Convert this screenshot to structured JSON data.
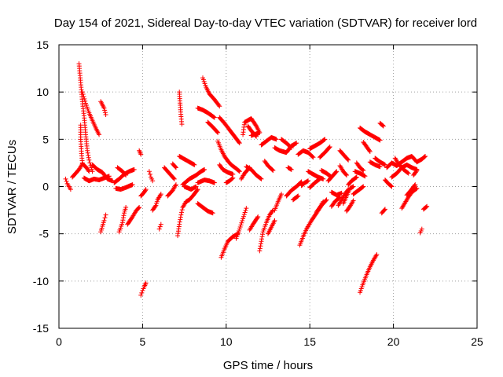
{
  "chart_data": {
    "type": "scatter",
    "title": "Day 154 of 2021, Sidereal Day-to-day VTEC variation (SDTVAR) for receiver lord",
    "xlabel": "GPS time / hours",
    "ylabel": "SDTVAR / TECUs",
    "xlim": [
      0,
      25
    ],
    "ylim": [
      -15,
      15
    ],
    "xticks": [
      0,
      5,
      10,
      15,
      20,
      25
    ],
    "yticks": [
      -15,
      -10,
      -5,
      0,
      5,
      10,
      15
    ],
    "grid": true,
    "marker": "+",
    "color": "#ff0000",
    "segments": [
      [
        [
          1.2,
          13.0
        ],
        [
          1.3,
          11.0
        ],
        [
          1.4,
          9.0
        ],
        [
          1.5,
          7.5
        ],
        [
          1.6,
          5.5
        ],
        [
          1.7,
          3.8
        ],
        [
          1.8,
          2.8
        ],
        [
          1.9,
          2.2
        ],
        [
          2.0,
          1.6
        ]
      ],
      [
        [
          1.3,
          6.5
        ],
        [
          1.3,
          5.0
        ],
        [
          1.35,
          3.5
        ],
        [
          1.4,
          2.5
        ]
      ],
      [
        [
          1.4,
          10.0
        ],
        [
          1.6,
          8.8
        ],
        [
          1.8,
          7.8
        ],
        [
          2.0,
          7.0
        ],
        [
          2.2,
          6.2
        ],
        [
          2.4,
          5.5
        ]
      ],
      [
        [
          0.4,
          0.8
        ],
        [
          0.5,
          0.3
        ],
        [
          0.6,
          0.0
        ],
        [
          0.7,
          -0.3
        ]
      ],
      [
        [
          0.8,
          1.0
        ],
        [
          1.0,
          1.4
        ],
        [
          1.2,
          1.8
        ],
        [
          1.4,
          2.4
        ],
        [
          1.6,
          2.1
        ],
        [
          1.8,
          1.6
        ]
      ],
      [
        [
          1.5,
          0.9
        ],
        [
          1.8,
          0.6
        ],
        [
          2.1,
          0.8
        ],
        [
          2.4,
          0.7
        ],
        [
          2.7,
          0.9
        ],
        [
          3.0,
          1.1
        ]
      ],
      [
        [
          2.0,
          2.3
        ],
        [
          2.3,
          1.8
        ],
        [
          2.6,
          1.5
        ],
        [
          2.9,
          0.8
        ],
        [
          3.2,
          0.6
        ]
      ],
      [
        [
          2.5,
          9.0
        ],
        [
          2.7,
          8.3
        ],
        [
          2.8,
          7.6
        ]
      ],
      [
        [
          2.5,
          -4.8
        ],
        [
          2.6,
          -4.2
        ],
        [
          2.7,
          -3.6
        ],
        [
          2.8,
          -3.0
        ]
      ],
      [
        [
          3.3,
          0.4
        ],
        [
          3.6,
          0.8
        ],
        [
          3.9,
          1.3
        ],
        [
          4.2,
          1.6
        ],
        [
          4.5,
          1.8
        ]
      ],
      [
        [
          3.5,
          2.0
        ],
        [
          3.8,
          1.6
        ],
        [
          4.0,
          1.2
        ]
      ],
      [
        [
          3.4,
          -0.2
        ],
        [
          3.7,
          -0.3
        ],
        [
          4.0,
          -0.1
        ],
        [
          4.4,
          0.2
        ]
      ],
      [
        [
          3.6,
          -4.8
        ],
        [
          3.8,
          -3.8
        ],
        [
          3.9,
          -2.8
        ],
        [
          4.0,
          -2.2
        ]
      ],
      [
        [
          4.1,
          -4.0
        ],
        [
          4.4,
          -3.2
        ],
        [
          4.6,
          -2.6
        ],
        [
          4.8,
          -2.2
        ]
      ],
      [
        [
          4.8,
          3.8
        ],
        [
          4.9,
          3.4
        ]
      ],
      [
        [
          4.9,
          -11.5
        ],
        [
          5.0,
          -11.0
        ],
        [
          5.1,
          -10.6
        ],
        [
          5.2,
          -10.2
        ]
      ],
      [
        [
          4.9,
          -1.0
        ],
        [
          5.1,
          -0.6
        ],
        [
          5.2,
          -0.3
        ]
      ],
      [
        [
          5.4,
          1.6
        ],
        [
          5.5,
          1.0
        ],
        [
          5.6,
          0.6
        ]
      ],
      [
        [
          5.6,
          -2.5
        ],
        [
          5.8,
          -2.0
        ],
        [
          5.9,
          -1.4
        ],
        [
          6.1,
          -0.8
        ]
      ],
      [
        [
          6.0,
          -4.5
        ],
        [
          6.1,
          -4.0
        ]
      ],
      [
        [
          6.3,
          2.0
        ],
        [
          6.5,
          1.6
        ],
        [
          6.7,
          1.2
        ],
        [
          6.9,
          0.8
        ]
      ],
      [
        [
          6.5,
          -1.0
        ],
        [
          6.8,
          -0.4
        ],
        [
          7.0,
          0.2
        ]
      ],
      [
        [
          6.8,
          2.4
        ],
        [
          7.0,
          2.0
        ]
      ],
      [
        [
          7.1,
          -5.2
        ],
        [
          7.2,
          -4.0
        ],
        [
          7.3,
          -3.0
        ],
        [
          7.4,
          -2.2
        ],
        [
          7.6,
          -1.6
        ],
        [
          7.8,
          -1.4
        ],
        [
          8.0,
          -1.0
        ],
        [
          8.3,
          -0.3
        ]
      ],
      [
        [
          7.2,
          10.0
        ],
        [
          7.25,
          8.6
        ],
        [
          7.3,
          7.4
        ],
        [
          7.35,
          6.6
        ]
      ],
      [
        [
          7.2,
          3.2
        ],
        [
          7.5,
          2.9
        ],
        [
          7.8,
          2.6
        ],
        [
          8.1,
          2.3
        ]
      ],
      [
        [
          7.4,
          0.2
        ],
        [
          7.8,
          0.8
        ],
        [
          8.2,
          1.2
        ],
        [
          8.5,
          1.6
        ],
        [
          8.7,
          1.8
        ]
      ],
      [
        [
          7.5,
          0.0
        ],
        [
          7.9,
          -0.3
        ],
        [
          8.2,
          0.0
        ]
      ],
      [
        [
          8.3,
          -1.8
        ],
        [
          8.6,
          -2.2
        ],
        [
          8.9,
          -2.6
        ],
        [
          9.2,
          -2.8
        ]
      ],
      [
        [
          8.3,
          0.4
        ],
        [
          8.7,
          0.7
        ],
        [
          9.0,
          0.6
        ],
        [
          9.3,
          0.4
        ]
      ],
      [
        [
          8.3,
          8.3
        ],
        [
          8.6,
          8.1
        ],
        [
          8.9,
          7.8
        ],
        [
          9.3,
          7.3
        ]
      ],
      [
        [
          8.6,
          11.5
        ],
        [
          8.8,
          10.5
        ],
        [
          9.0,
          9.8
        ],
        [
          9.3,
          9.2
        ],
        [
          9.6,
          8.5
        ]
      ],
      [
        [
          8.9,
          6.8
        ],
        [
          9.2,
          6.3
        ],
        [
          9.5,
          5.7
        ]
      ],
      [
        [
          9.6,
          7.3
        ],
        [
          9.9,
          6.7
        ],
        [
          10.2,
          6.0
        ],
        [
          10.5,
          5.3
        ],
        [
          10.8,
          4.6
        ]
      ],
      [
        [
          9.5,
          4.8
        ],
        [
          9.7,
          3.9
        ],
        [
          9.9,
          3.2
        ],
        [
          10.1,
          2.7
        ],
        [
          10.3,
          2.3
        ],
        [
          10.6,
          1.9
        ],
        [
          10.8,
          1.6
        ]
      ],
      [
        [
          9.6,
          2.3
        ],
        [
          9.8,
          1.8
        ],
        [
          10.1,
          1.5
        ],
        [
          10.4,
          1.3
        ]
      ],
      [
        [
          9.7,
          -7.5
        ],
        [
          9.9,
          -6.6
        ],
        [
          10.1,
          -5.8
        ],
        [
          10.4,
          -5.3
        ],
        [
          10.7,
          -5.0
        ]
      ],
      [
        [
          10.0,
          0.4
        ],
        [
          10.2,
          0.6
        ],
        [
          10.4,
          0.9
        ]
      ],
      [
        [
          10.6,
          -5.5
        ],
        [
          10.8,
          -4.5
        ],
        [
          11.0,
          -3.4
        ],
        [
          11.2,
          -2.3
        ]
      ],
      [
        [
          11.0,
          5.5
        ],
        [
          11.1,
          6.8
        ],
        [
          11.5,
          7.2
        ],
        [
          11.8,
          6.4
        ],
        [
          12.0,
          5.7
        ],
        [
          11.5,
          5.4
        ]
      ],
      [
        [
          10.9,
          0.8
        ],
        [
          11.1,
          1.4
        ],
        [
          11.4,
          2.0
        ]
      ],
      [
        [
          11.3,
          6.4
        ],
        [
          11.5,
          5.9
        ],
        [
          11.8,
          5.3
        ]
      ],
      [
        [
          11.4,
          -4.6
        ],
        [
          11.6,
          -4.0
        ],
        [
          11.9,
          -3.2
        ]
      ],
      [
        [
          11.2,
          2.1
        ],
        [
          11.5,
          1.8
        ],
        [
          11.8,
          1.2
        ],
        [
          12.1,
          0.8
        ]
      ],
      [
        [
          12.0,
          -6.8
        ],
        [
          12.1,
          -5.8
        ],
        [
          12.2,
          -4.8
        ],
        [
          12.4,
          -3.8
        ],
        [
          12.6,
          -3.0
        ],
        [
          12.8,
          -2.5
        ]
      ],
      [
        [
          12.3,
          2.7
        ],
        [
          12.5,
          2.2
        ],
        [
          12.8,
          1.7
        ]
      ],
      [
        [
          12.1,
          4.4
        ],
        [
          12.4,
          4.8
        ],
        [
          12.7,
          5.2
        ],
        [
          13.0,
          5.0
        ]
      ],
      [
        [
          12.5,
          -5.0
        ],
        [
          12.7,
          -4.3
        ],
        [
          12.9,
          -3.6
        ]
      ],
      [
        [
          12.9,
          -2.5
        ],
        [
          13.1,
          -1.6
        ],
        [
          13.3,
          -0.8
        ]
      ],
      [
        [
          12.9,
          4.1
        ],
        [
          13.2,
          3.8
        ],
        [
          13.6,
          3.6
        ],
        [
          13.9,
          4.3
        ],
        [
          14.2,
          4.6
        ]
      ],
      [
        [
          13.3,
          5.0
        ],
        [
          13.6,
          4.6
        ],
        [
          13.9,
          4.1
        ]
      ],
      [
        [
          13.6,
          -1.0
        ],
        [
          13.9,
          -0.4
        ],
        [
          14.2,
          0.0
        ],
        [
          14.5,
          0.5
        ]
      ],
      [
        [
          13.7,
          2.0
        ],
        [
          13.9,
          1.8
        ]
      ],
      [
        [
          14.0,
          -1.4
        ],
        [
          14.3,
          -1.0
        ]
      ],
      [
        [
          14.3,
          3.4
        ],
        [
          14.6,
          3.8
        ],
        [
          14.9,
          3.6
        ],
        [
          15.2,
          3.1
        ]
      ],
      [
        [
          14.4,
          -6.2
        ],
        [
          14.6,
          -5.3
        ],
        [
          14.8,
          -4.5
        ],
        [
          15.1,
          -3.6
        ],
        [
          15.4,
          -2.8
        ],
        [
          15.7,
          -2.0
        ],
        [
          16.0,
          -1.4
        ]
      ],
      [
        [
          14.5,
          0.1
        ],
        [
          14.7,
          0.4
        ],
        [
          14.9,
          0.6
        ]
      ],
      [
        [
          14.9,
          1.6
        ],
        [
          15.2,
          1.3
        ],
        [
          15.5,
          1.0
        ],
        [
          15.8,
          0.8
        ]
      ],
      [
        [
          15.0,
          -0.1
        ],
        [
          15.3,
          0.4
        ],
        [
          15.6,
          0.8
        ]
      ],
      [
        [
          15.0,
          4.0
        ],
        [
          15.3,
          4.3
        ],
        [
          15.6,
          4.6
        ],
        [
          15.9,
          5.0
        ]
      ],
      [
        [
          15.4,
          -2.7
        ],
        [
          15.6,
          -2.2
        ],
        [
          15.8,
          -1.6
        ]
      ],
      [
        [
          15.6,
          3.1
        ],
        [
          15.9,
          3.6
        ],
        [
          16.2,
          4.2
        ]
      ],
      [
        [
          15.7,
          1.7
        ],
        [
          16.0,
          1.4
        ],
        [
          16.3,
          1.0
        ]
      ],
      [
        [
          16.1,
          0.6
        ],
        [
          16.3,
          1.0
        ],
        [
          16.6,
          1.6
        ]
      ],
      [
        [
          16.3,
          -2.1
        ],
        [
          16.5,
          -1.6
        ],
        [
          16.8,
          -1.1
        ]
      ],
      [
        [
          16.3,
          -0.6
        ],
        [
          16.6,
          -0.9
        ],
        [
          16.9,
          -0.7
        ]
      ],
      [
        [
          16.7,
          -2.0
        ],
        [
          16.9,
          -1.4
        ],
        [
          17.1,
          -0.8
        ],
        [
          17.3,
          -0.3
        ]
      ],
      [
        [
          16.8,
          2.2
        ],
        [
          17.0,
          1.6
        ],
        [
          17.2,
          1.2
        ]
      ],
      [
        [
          16.8,
          3.8
        ],
        [
          17.1,
          3.2
        ],
        [
          17.3,
          2.8
        ]
      ],
      [
        [
          17.0,
          -1.8
        ],
        [
          17.2,
          -1.0
        ],
        [
          17.4,
          -0.2
        ],
        [
          17.6,
          0.0
        ]
      ],
      [
        [
          17.2,
          -2.6
        ],
        [
          17.4,
          -2.1
        ],
        [
          17.6,
          -1.5
        ]
      ],
      [
        [
          17.3,
          0.2
        ],
        [
          17.5,
          0.6
        ],
        [
          17.8,
          1.0
        ]
      ],
      [
        [
          17.6,
          -0.8
        ],
        [
          17.9,
          -0.4
        ],
        [
          18.2,
          0.0
        ]
      ],
      [
        [
          17.7,
          1.6
        ],
        [
          18.0,
          1.4
        ],
        [
          18.3,
          1.1
        ]
      ],
      [
        [
          17.8,
          2.5
        ],
        [
          18.0,
          2.0
        ],
        [
          18.2,
          1.7
        ]
      ],
      [
        [
          18.0,
          6.2
        ],
        [
          18.3,
          5.8
        ],
        [
          18.6,
          5.5
        ],
        [
          18.9,
          5.2
        ],
        [
          19.2,
          4.9
        ]
      ],
      [
        [
          18.0,
          -11.2
        ],
        [
          18.2,
          -10.2
        ],
        [
          18.4,
          -9.3
        ],
        [
          18.6,
          -8.5
        ],
        [
          18.8,
          -7.8
        ],
        [
          19.0,
          -7.2
        ]
      ],
      [
        [
          18.2,
          4.7
        ],
        [
          18.4,
          4.2
        ],
        [
          18.6,
          3.7
        ]
      ],
      [
        [
          18.6,
          2.6
        ],
        [
          18.9,
          2.3
        ],
        [
          19.2,
          2.1
        ]
      ],
      [
        [
          18.9,
          3.0
        ],
        [
          19.2,
          2.6
        ],
        [
          19.5,
          2.3
        ]
      ],
      [
        [
          19.2,
          6.7
        ],
        [
          19.4,
          6.4
        ]
      ],
      [
        [
          19.3,
          -2.8
        ],
        [
          19.5,
          -2.4
        ]
      ],
      [
        [
          19.5,
          0.7
        ],
        [
          19.7,
          0.3
        ],
        [
          19.9,
          0.0
        ]
      ],
      [
        [
          19.6,
          2.0
        ],
        [
          19.9,
          2.5
        ],
        [
          20.2,
          2.2
        ],
        [
          20.5,
          2.6
        ],
        [
          20.8,
          3.0
        ],
        [
          21.1,
          3.2
        ],
        [
          21.4,
          2.6
        ],
        [
          21.7,
          2.9
        ],
        [
          21.9,
          3.2
        ]
      ],
      [
        [
          19.9,
          1.0
        ],
        [
          20.2,
          1.4
        ],
        [
          20.5,
          2.0
        ],
        [
          20.8,
          2.3
        ],
        [
          21.1,
          2.0
        ],
        [
          21.4,
          1.8
        ]
      ],
      [
        [
          20.1,
          3.0
        ],
        [
          20.3,
          2.4
        ],
        [
          20.6,
          1.8
        ],
        [
          20.9,
          1.4
        ]
      ],
      [
        [
          20.5,
          -2.3
        ],
        [
          20.7,
          -1.7
        ],
        [
          20.9,
          -1.1
        ],
        [
          21.1,
          -0.6
        ],
        [
          21.4,
          -0.2
        ]
      ],
      [
        [
          20.8,
          -0.9
        ],
        [
          21.0,
          -0.5
        ],
        [
          21.3,
          0.2
        ]
      ],
      [
        [
          21.2,
          1.2
        ],
        [
          21.4,
          1.7
        ]
      ],
      [
        [
          21.6,
          -4.9
        ],
        [
          21.7,
          -4.5
        ]
      ],
      [
        [
          21.8,
          -2.4
        ],
        [
          22.0,
          -2.1
        ]
      ]
    ]
  }
}
